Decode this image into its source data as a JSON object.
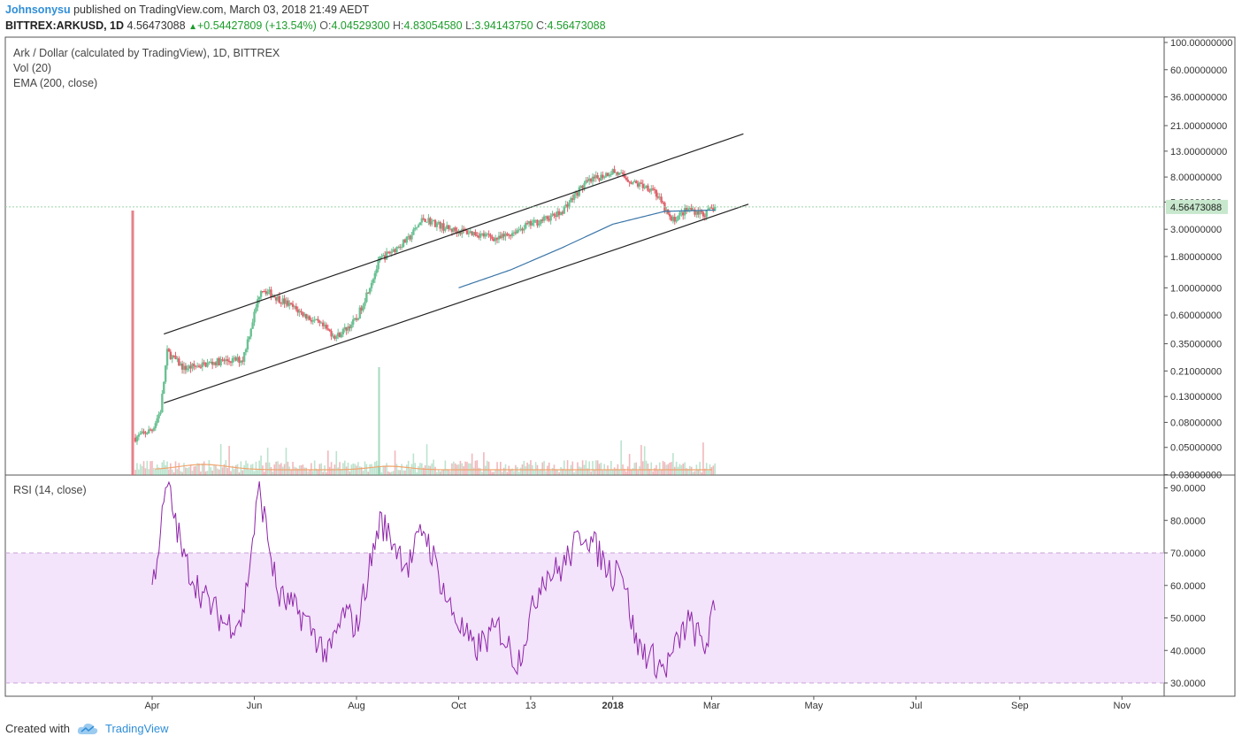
{
  "header": {
    "author": "Johnsonysu",
    "published": "published on TradingView.com, March 03, 2018 21:49 AEDT",
    "symbol": "BITTREX:ARKUSD, 1D",
    "last": "4.56473088",
    "change": "+0.54427809 (+13.54%)",
    "o_label": "O:",
    "o_value": "4.04529300",
    "h_label": "H:",
    "h_value": "4.83054580",
    "l_label": "L:",
    "l_value": "3.94143750",
    "c_label": "C:",
    "c_value": "4.56473088"
  },
  "legend": {
    "title": "Ark / Dollar (calculated by TradingView), 1D, BITTREX",
    "vol": "Vol (20)",
    "ema": "EMA (200, close)",
    "rsi": "RSI (14, close)"
  },
  "footer": {
    "created": "Created with",
    "brand": "TradingView"
  },
  "colors": {
    "up": "#6ac193",
    "down": "#e0626b",
    "ema": "#3a75a8",
    "rsi": "#8e25a8",
    "rsi_band": "#f3e3fb",
    "vol_ma": "#f0a56e",
    "last_price_bg": "#c7e8cd"
  },
  "chart_data": [
    {
      "type": "candlestick",
      "title": "Ark / Dollar (calculated by TradingView), 1D, BITTREX",
      "scale": "log",
      "y_ticks": [
        "100.00000000",
        "60.00000000",
        "36.00000000",
        "21.00000000",
        "13.00000000",
        "8.00000000",
        "5.00000000",
        "3.00000000",
        "1.80000000",
        "1.00000000",
        "0.60000000",
        "0.35000000",
        "0.21000000",
        "0.13000000",
        "0.08000000",
        "0.05000000",
        "0.03000000"
      ],
      "x_ticks": [
        "Apr",
        "Jun",
        "Aug",
        "Oct",
        "13",
        "2018",
        "Mar",
        "May",
        "Jul",
        "Sep",
        "Nov"
      ],
      "last_price": "4.56473088",
      "close_approx": [
        {
          "date": "2017-03-22",
          "close": 0.06
        },
        {
          "date": "2017-04-01",
          "close": 0.07
        },
        {
          "date": "2017-04-06",
          "close": 0.1
        },
        {
          "date": "2017-04-10",
          "close": 0.3
        },
        {
          "date": "2017-04-20",
          "close": 0.22
        },
        {
          "date": "2017-05-10",
          "close": 0.25
        },
        {
          "date": "2017-05-25",
          "close": 0.26
        },
        {
          "date": "2017-06-05",
          "close": 1.0
        },
        {
          "date": "2017-06-20",
          "close": 0.75
        },
        {
          "date": "2017-07-10",
          "close": 0.5
        },
        {
          "date": "2017-07-20",
          "close": 0.4
        },
        {
          "date": "2017-08-01",
          "close": 0.55
        },
        {
          "date": "2017-08-15",
          "close": 1.7
        },
        {
          "date": "2017-09-01",
          "close": 2.5
        },
        {
          "date": "2017-09-10",
          "close": 3.7
        },
        {
          "date": "2017-09-25",
          "close": 3.0
        },
        {
          "date": "2017-10-10",
          "close": 2.8
        },
        {
          "date": "2017-10-25",
          "close": 2.5
        },
        {
          "date": "2017-11-10",
          "close": 3.2
        },
        {
          "date": "2017-11-30",
          "close": 4.0
        },
        {
          "date": "2017-12-15",
          "close": 7.0
        },
        {
          "date": "2018-01-01",
          "close": 9.0
        },
        {
          "date": "2018-01-15",
          "close": 7.0
        },
        {
          "date": "2018-01-25",
          "close": 6.5
        },
        {
          "date": "2018-02-05",
          "close": 3.5
        },
        {
          "date": "2018-02-15",
          "close": 4.4
        },
        {
          "date": "2018-02-25",
          "close": 4.0
        },
        {
          "date": "2018-03-03",
          "close": 4.56
        }
      ],
      "ema200_approx": [
        {
          "date": "2017-10-01",
          "value": 1.0
        },
        {
          "date": "2017-11-01",
          "value": 1.4
        },
        {
          "date": "2017-12-01",
          "value": 2.1
        },
        {
          "date": "2018-01-01",
          "value": 3.3
        },
        {
          "date": "2018-02-01",
          "value": 4.2
        },
        {
          "date": "2018-03-03",
          "value": 4.3
        }
      ],
      "channel_upper": [
        {
          "date": "2017-04-08",
          "value": 0.42
        },
        {
          "date": "2018-03-20",
          "value": 18.0
        }
      ],
      "channel_lower": [
        {
          "date": "2017-04-08",
          "value": 0.115
        },
        {
          "date": "2018-03-23",
          "value": 4.8
        }
      ]
    },
    {
      "type": "line",
      "title": "RSI (14, close)",
      "y_ticks": [
        "90.0000",
        "80.0000",
        "70.0000",
        "60.0000",
        "50.0000",
        "40.0000",
        "30.0000"
      ],
      "band": [
        30,
        70
      ],
      "values_approx": [
        {
          "date": "2017-04-01",
          "value": 59
        },
        {
          "date": "2017-04-10",
          "value": 91
        },
        {
          "date": "2017-04-20",
          "value": 68
        },
        {
          "date": "2017-05-01",
          "value": 57
        },
        {
          "date": "2017-05-15",
          "value": 48
        },
        {
          "date": "2017-05-25",
          "value": 50
        },
        {
          "date": "2017-06-04",
          "value": 90
        },
        {
          "date": "2017-06-15",
          "value": 57
        },
        {
          "date": "2017-07-01",
          "value": 50
        },
        {
          "date": "2017-07-15",
          "value": 38
        },
        {
          "date": "2017-07-25",
          "value": 52
        },
        {
          "date": "2017-08-01",
          "value": 47
        },
        {
          "date": "2017-08-15",
          "value": 80
        },
        {
          "date": "2017-09-01",
          "value": 66
        },
        {
          "date": "2017-09-10",
          "value": 78
        },
        {
          "date": "2017-09-25",
          "value": 54
        },
        {
          "date": "2017-10-10",
          "value": 40
        },
        {
          "date": "2017-10-25",
          "value": 47
        },
        {
          "date": "2017-11-05",
          "value": 36
        },
        {
          "date": "2017-11-20",
          "value": 63
        },
        {
          "date": "2017-12-01",
          "value": 65
        },
        {
          "date": "2017-12-15",
          "value": 77
        },
        {
          "date": "2018-01-01",
          "value": 63
        },
        {
          "date": "2018-01-05",
          "value": 69
        },
        {
          "date": "2018-01-15",
          "value": 42
        },
        {
          "date": "2018-02-01",
          "value": 34
        },
        {
          "date": "2018-02-15",
          "value": 49
        },
        {
          "date": "2018-02-25",
          "value": 41
        },
        {
          "date": "2018-03-03",
          "value": 53
        }
      ]
    }
  ]
}
